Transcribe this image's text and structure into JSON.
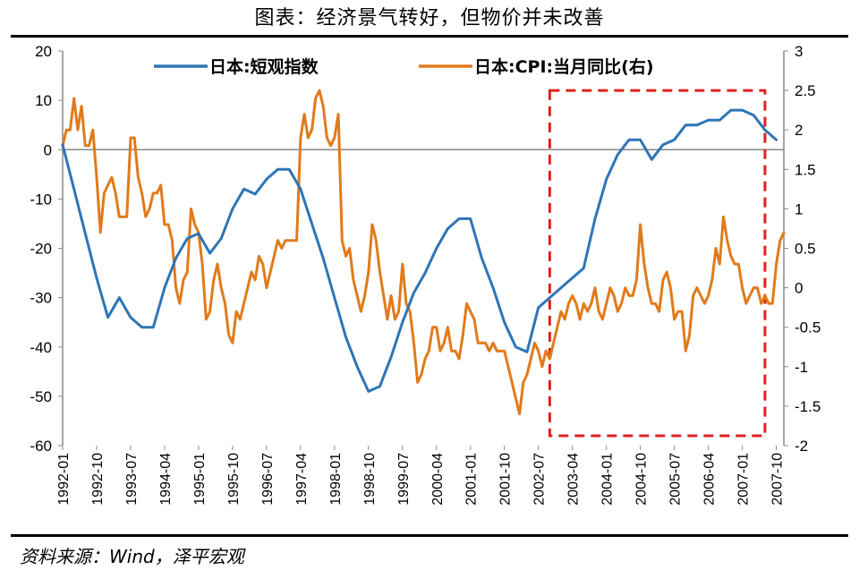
{
  "title": "图表：经济景气转好，但物价并未改善",
  "source": "资料来源：Wind，泽平宏观",
  "colors": {
    "tankan": "#2e75b6",
    "cpi": "#e07b1a",
    "highlight": "#e02020",
    "axis": "#888888"
  },
  "chart_data": {
    "type": "line",
    "legend_position": "top",
    "grid": false,
    "x_labels": [
      "1992-01",
      "1992-10",
      "1993-07",
      "1994-04",
      "1995-01",
      "1995-10",
      "1996-07",
      "1997-04",
      "1998-01",
      "1998-10",
      "1999-07",
      "2000-04",
      "2001-01",
      "2001-10",
      "2002-07",
      "2003-04",
      "2004-01",
      "2004-10",
      "2005-07",
      "2006-04",
      "2007-01",
      "2007-10"
    ],
    "x_range": [
      "1992-01",
      "2007-12"
    ],
    "y_left": {
      "ticks": [
        "20",
        "10",
        "0",
        "-10",
        "-20",
        "-30",
        "-40",
        "-50",
        "-60"
      ],
      "ylim": [
        -60,
        20
      ]
    },
    "y_right": {
      "ticks": [
        "3",
        "2.5",
        "2",
        "1.5",
        "1",
        "0.5",
        "0",
        "-0.5",
        "-1",
        "-1.5",
        "-2"
      ],
      "ylim": [
        -2,
        3
      ]
    },
    "highlight_box": {
      "x_start": "2002-10",
      "x_end": "2007-07",
      "y_top_left": 12,
      "y_bottom_left": -58
    },
    "series": [
      {
        "name": "日本:短观指数",
        "axis": "left",
        "points": [
          [
            "1992-01",
            1
          ],
          [
            "1992-04",
            -8
          ],
          [
            "1992-07",
            -17
          ],
          [
            "1992-10",
            -26
          ],
          [
            "1993-01",
            -34
          ],
          [
            "1993-04",
            -30
          ],
          [
            "1993-07",
            -34
          ],
          [
            "1993-10",
            -36
          ],
          [
            "1994-01",
            -36
          ],
          [
            "1994-04",
            -28
          ],
          [
            "1994-07",
            -22
          ],
          [
            "1994-10",
            -18
          ],
          [
            "1995-01",
            -17
          ],
          [
            "1995-04",
            -21
          ],
          [
            "1995-07",
            -18
          ],
          [
            "1995-10",
            -12
          ],
          [
            "1996-01",
            -8
          ],
          [
            "1996-04",
            -9
          ],
          [
            "1996-07",
            -6
          ],
          [
            "1996-10",
            -4
          ],
          [
            "1997-01",
            -4
          ],
          [
            "1997-04",
            -8
          ],
          [
            "1997-07",
            -15
          ],
          [
            "1997-10",
            -22
          ],
          [
            "1998-01",
            -30
          ],
          [
            "1998-04",
            -38
          ],
          [
            "1998-07",
            -44
          ],
          [
            "1998-10",
            -49
          ],
          [
            "1999-01",
            -48
          ],
          [
            "1999-04",
            -42
          ],
          [
            "1999-07",
            -35
          ],
          [
            "1999-10",
            -29
          ],
          [
            "2000-01",
            -25
          ],
          [
            "2000-04",
            -20
          ],
          [
            "2000-07",
            -16
          ],
          [
            "2000-10",
            -14
          ],
          [
            "2001-01",
            -14
          ],
          [
            "2001-04",
            -22
          ],
          [
            "2001-07",
            -28
          ],
          [
            "2001-10",
            -35
          ],
          [
            "2002-01",
            -40
          ],
          [
            "2002-04",
            -41
          ],
          [
            "2002-07",
            -32
          ],
          [
            "2002-10",
            -30
          ],
          [
            "2003-01",
            -28
          ],
          [
            "2003-04",
            -26
          ],
          [
            "2003-07",
            -24
          ],
          [
            "2003-10",
            -14
          ],
          [
            "2004-01",
            -6
          ],
          [
            "2004-04",
            -1
          ],
          [
            "2004-07",
            2
          ],
          [
            "2004-10",
            2
          ],
          [
            "2005-01",
            -2
          ],
          [
            "2005-04",
            1
          ],
          [
            "2005-07",
            2
          ],
          [
            "2005-10",
            5
          ],
          [
            "2006-01",
            5
          ],
          [
            "2006-04",
            6
          ],
          [
            "2006-07",
            6
          ],
          [
            "2006-10",
            8
          ],
          [
            "2007-01",
            8
          ],
          [
            "2007-04",
            7
          ],
          [
            "2007-07",
            4
          ],
          [
            "2007-10",
            2
          ]
        ]
      },
      {
        "name": "日本:CPI:当月同比(右)",
        "axis": "right",
        "points": [
          [
            "1992-01",
            1.8
          ],
          [
            "1992-02",
            2.0
          ],
          [
            "1992-03",
            2.0
          ],
          [
            "1992-04",
            2.4
          ],
          [
            "1992-05",
            2.0
          ],
          [
            "1992-06",
            2.3
          ],
          [
            "1992-07",
            1.8
          ],
          [
            "1992-08",
            1.8
          ],
          [
            "1992-09",
            2.0
          ],
          [
            "1992-10",
            1.4
          ],
          [
            "1992-11",
            0.7
          ],
          [
            "1992-12",
            1.2
          ],
          [
            "1993-01",
            1.3
          ],
          [
            "1993-02",
            1.4
          ],
          [
            "1993-03",
            1.2
          ],
          [
            "1993-04",
            0.9
          ],
          [
            "1993-05",
            0.9
          ],
          [
            "1993-06",
            0.9
          ],
          [
            "1993-07",
            1.9
          ],
          [
            "1993-08",
            1.9
          ],
          [
            "1993-09",
            1.4
          ],
          [
            "1993-10",
            1.2
          ],
          [
            "1993-11",
            0.9
          ],
          [
            "1993-12",
            1.0
          ],
          [
            "1994-01",
            1.2
          ],
          [
            "1994-02",
            1.2
          ],
          [
            "1994-03",
            1.3
          ],
          [
            "1994-04",
            0.8
          ],
          [
            "1994-05",
            0.8
          ],
          [
            "1994-06",
            0.6
          ],
          [
            "1994-07",
            0.0
          ],
          [
            "1994-08",
            -0.2
          ],
          [
            "1994-09",
            0.1
          ],
          [
            "1994-10",
            0.2
          ],
          [
            "1994-11",
            1.0
          ],
          [
            "1994-12",
            0.8
          ],
          [
            "1995-01",
            0.7
          ],
          [
            "1995-02",
            0.3
          ],
          [
            "1995-03",
            -0.4
          ],
          [
            "1995-04",
            -0.3
          ],
          [
            "1995-05",
            0.1
          ],
          [
            "1995-06",
            0.3
          ],
          [
            "1995-07",
            0.0
          ],
          [
            "1995-08",
            -0.2
          ],
          [
            "1995-09",
            -0.6
          ],
          [
            "1995-10",
            -0.7
          ],
          [
            "1995-11",
            -0.3
          ],
          [
            "1995-12",
            -0.4
          ],
          [
            "1996-01",
            -0.2
          ],
          [
            "1996-02",
            0.0
          ],
          [
            "1996-03",
            0.2
          ],
          [
            "1996-04",
            0.1
          ],
          [
            "1996-05",
            0.4
          ],
          [
            "1996-06",
            0.3
          ],
          [
            "1996-07",
            0.0
          ],
          [
            "1996-08",
            0.2
          ],
          [
            "1996-09",
            0.4
          ],
          [
            "1996-10",
            0.6
          ],
          [
            "1996-11",
            0.5
          ],
          [
            "1996-12",
            0.6
          ],
          [
            "1997-01",
            0.6
          ],
          [
            "1997-02",
            0.6
          ],
          [
            "1997-03",
            0.6
          ],
          [
            "1997-04",
            1.9
          ],
          [
            "1997-05",
            2.2
          ],
          [
            "1997-06",
            1.9
          ],
          [
            "1997-07",
            2.0
          ],
          [
            "1997-08",
            2.4
          ],
          [
            "1997-09",
            2.5
          ],
          [
            "1997-10",
            2.3
          ],
          [
            "1997-11",
            1.9
          ],
          [
            "1997-12",
            1.8
          ],
          [
            "1998-01",
            1.9
          ],
          [
            "1998-02",
            2.2
          ],
          [
            "1998-03",
            0.6
          ],
          [
            "1998-04",
            0.4
          ],
          [
            "1998-05",
            0.5
          ],
          [
            "1998-06",
            0.1
          ],
          [
            "1998-07",
            -0.1
          ],
          [
            "1998-08",
            -0.3
          ],
          [
            "1998-09",
            -0.1
          ],
          [
            "1998-10",
            0.2
          ],
          [
            "1998-11",
            0.8
          ],
          [
            "1998-12",
            0.6
          ],
          [
            "1999-01",
            0.2
          ],
          [
            "1999-02",
            -0.1
          ],
          [
            "1999-03",
            -0.4
          ],
          [
            "1999-04",
            -0.1
          ],
          [
            "1999-05",
            -0.4
          ],
          [
            "1999-06",
            -0.3
          ],
          [
            "1999-07",
            0.3
          ],
          [
            "1999-08",
            -0.2
          ],
          [
            "1999-09",
            -0.3
          ],
          [
            "1999-10",
            -0.7
          ],
          [
            "1999-11",
            -1.2
          ],
          [
            "1999-12",
            -1.1
          ],
          [
            "2000-01",
            -0.9
          ],
          [
            "2000-02",
            -0.8
          ],
          [
            "2000-03",
            -0.5
          ],
          [
            "2000-04",
            -0.5
          ],
          [
            "2000-05",
            -0.8
          ],
          [
            "2000-06",
            -0.7
          ],
          [
            "2000-07",
            -0.5
          ],
          [
            "2000-08",
            -0.8
          ],
          [
            "2000-09",
            -0.8
          ],
          [
            "2000-10",
            -0.9
          ],
          [
            "2000-11",
            -0.6
          ],
          [
            "2000-12",
            -0.2
          ],
          [
            "2001-01",
            -0.3
          ],
          [
            "2001-02",
            -0.4
          ],
          [
            "2001-03",
            -0.7
          ],
          [
            "2001-04",
            -0.7
          ],
          [
            "2001-05",
            -0.7
          ],
          [
            "2001-06",
            -0.8
          ],
          [
            "2001-07",
            -0.7
          ],
          [
            "2001-08",
            -0.8
          ],
          [
            "2001-09",
            -0.8
          ],
          [
            "2001-10",
            -0.8
          ],
          [
            "2001-11",
            -1.0
          ],
          [
            "2001-12",
            -1.2
          ],
          [
            "2002-01",
            -1.4
          ],
          [
            "2002-02",
            -1.6
          ],
          [
            "2002-03",
            -1.2
          ],
          [
            "2002-04",
            -1.1
          ],
          [
            "2002-05",
            -0.9
          ],
          [
            "2002-06",
            -0.7
          ],
          [
            "2002-07",
            -0.8
          ],
          [
            "2002-08",
            -1.0
          ],
          [
            "2002-09",
            -0.8
          ],
          [
            "2002-10",
            -0.9
          ],
          [
            "2002-11",
            -0.7
          ],
          [
            "2002-12",
            -0.5
          ],
          [
            "2003-01",
            -0.3
          ],
          [
            "2003-02",
            -0.4
          ],
          [
            "2003-03",
            -0.2
          ],
          [
            "2003-04",
            -0.1
          ],
          [
            "2003-05",
            -0.2
          ],
          [
            "2003-06",
            -0.4
          ],
          [
            "2003-07",
            -0.2
          ],
          [
            "2003-08",
            -0.3
          ],
          [
            "2003-09",
            -0.2
          ],
          [
            "2003-10",
            0.0
          ],
          [
            "2003-11",
            -0.3
          ],
          [
            "2003-12",
            -0.4
          ],
          [
            "2004-01",
            -0.2
          ],
          [
            "2004-02",
            0.0
          ],
          [
            "2004-03",
            -0.1
          ],
          [
            "2004-04",
            -0.3
          ],
          [
            "2004-05",
            -0.2
          ],
          [
            "2004-06",
            0.0
          ],
          [
            "2004-07",
            -0.1
          ],
          [
            "2004-08",
            -0.1
          ],
          [
            "2004-09",
            0.1
          ],
          [
            "2004-10",
            0.8
          ],
          [
            "2004-11",
            0.3
          ],
          [
            "2004-12",
            0.0
          ],
          [
            "2005-01",
            -0.2
          ],
          [
            "2005-02",
            -0.2
          ],
          [
            "2005-03",
            -0.3
          ],
          [
            "2005-04",
            0.1
          ],
          [
            "2005-05",
            0.2
          ],
          [
            "2005-06",
            0.0
          ],
          [
            "2005-07",
            -0.4
          ],
          [
            "2005-08",
            -0.3
          ],
          [
            "2005-09",
            -0.3
          ],
          [
            "2005-10",
            -0.8
          ],
          [
            "2005-11",
            -0.6
          ],
          [
            "2005-12",
            -0.1
          ],
          [
            "2006-01",
            0.0
          ],
          [
            "2006-02",
            -0.1
          ],
          [
            "2006-03",
            -0.2
          ],
          [
            "2006-04",
            -0.1
          ],
          [
            "2006-05",
            0.1
          ],
          [
            "2006-06",
            0.5
          ],
          [
            "2006-07",
            0.3
          ],
          [
            "2006-08",
            0.9
          ],
          [
            "2006-09",
            0.6
          ],
          [
            "2006-10",
            0.4
          ],
          [
            "2006-11",
            0.3
          ],
          [
            "2006-12",
            0.3
          ],
          [
            "2007-01",
            0.0
          ],
          [
            "2007-02",
            -0.2
          ],
          [
            "2007-03",
            -0.1
          ],
          [
            "2007-04",
            0.0
          ],
          [
            "2007-05",
            0.0
          ],
          [
            "2007-06",
            -0.2
          ],
          [
            "2007-07",
            -0.1
          ],
          [
            "2007-08",
            -0.2
          ],
          [
            "2007-09",
            -0.2
          ],
          [
            "2007-10",
            0.3
          ],
          [
            "2007-11",
            0.6
          ],
          [
            "2007-12",
            0.7
          ]
        ]
      }
    ]
  }
}
